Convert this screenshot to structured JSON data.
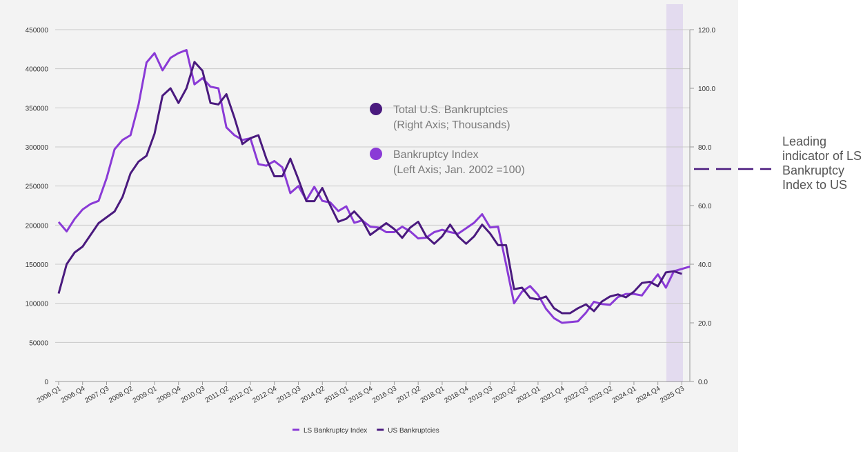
{
  "chart_data": {
    "type": "line",
    "categories": [
      "2006.Q1",
      null,
      null,
      "2006.Q4",
      null,
      null,
      "2007.Q3",
      null,
      null,
      "2008.Q2",
      null,
      null,
      "2009.Q1",
      null,
      null,
      "2009.Q4",
      null,
      null,
      "2010.Q3",
      null,
      null,
      "2011.Q2",
      null,
      null,
      "2012.Q1",
      null,
      null,
      "2012.Q4",
      null,
      null,
      "2013.Q3",
      null,
      null,
      "2014.Q2",
      null,
      null,
      "2015.Q1",
      null,
      null,
      "2015.Q4",
      null,
      null,
      "2016.Q3",
      null,
      null,
      "2017.Q2",
      null,
      null,
      "2018.Q1",
      null,
      null,
      "2018.Q4",
      null,
      null,
      "2019.Q3",
      null,
      null,
      "2020.Q2",
      null,
      null,
      "2021.Q1",
      null,
      null,
      "2021.Q4",
      null,
      null,
      "2022.Q3",
      null,
      null,
      "2023.Q2",
      null,
      null,
      "2024.Q1",
      null,
      null,
      "2024.Q4",
      null,
      null,
      "2025 Q3",
      null
    ],
    "series": [
      {
        "name": "LS Bankruptcy Index",
        "color": "#8a3ad6",
        "axis": "y",
        "values": [
          204000,
          192000,
          208000,
          220000,
          227000,
          231000,
          260000,
          297000,
          309000,
          315000,
          354000,
          408000,
          420000,
          398000,
          414000,
          420000,
          424000,
          380000,
          388000,
          377000,
          375000,
          325000,
          315000,
          309000,
          311000,
          278000,
          276000,
          282000,
          274000,
          241000,
          250000,
          232000,
          249000,
          231000,
          229000,
          218000,
          224000,
          203000,
          206000,
          198000,
          197000,
          191000,
          191000,
          198000,
          192000,
          183000,
          184000,
          191000,
          194000,
          191000,
          189000,
          196000,
          203000,
          214000,
          197000,
          198000,
          150000,
          100000,
          115000,
          122000,
          111000,
          93000,
          81000,
          75000,
          76000,
          77000,
          88000,
          102000,
          99000,
          98000,
          108000,
          112000,
          112000,
          110000,
          124000,
          137000,
          120000,
          141000,
          144000,
          147000
        ]
      },
      {
        "name": "US Bankruptcies",
        "color": "#4a1a7e",
        "axis": "y2",
        "values": [
          30,
          40,
          44,
          46,
          50,
          54,
          56,
          58,
          63,
          71,
          75,
          77,
          84.5,
          97.5,
          100,
          95,
          100,
          109,
          106,
          95,
          94.5,
          98,
          90,
          81,
          83,
          84,
          76,
          70,
          70,
          76,
          69,
          61.5,
          61.5,
          66,
          60,
          54.5,
          55.5,
          58,
          55,
          50,
          52,
          54,
          52,
          49,
          52.5,
          54.5,
          49.5,
          47,
          49.5,
          53.5,
          49.5,
          47,
          49.5,
          53.5,
          50.5,
          46.5,
          46.5,
          31.5,
          32,
          28.5,
          28,
          29,
          25,
          23.3,
          23.3,
          25,
          26.3,
          24,
          27.3,
          29,
          29.7,
          28.7,
          30.6,
          33.6,
          34,
          32.5,
          37.2,
          37.6,
          36.7,
          null
        ]
      }
    ],
    "ylim": [
      0,
      450000
    ],
    "yticks": [
      0,
      50000,
      100000,
      150000,
      200000,
      250000,
      300000,
      350000,
      400000,
      450000
    ],
    "y2lim": [
      0,
      120
    ],
    "y2ticks": [
      {
        "value": 0,
        "label": "0.0"
      },
      {
        "value": 20,
        "label": "20.0"
      },
      {
        "value": 40,
        "label": "40.0"
      },
      {
        "value": 60,
        "label": "60.0"
      },
      {
        "value": 80,
        "label": "80.0"
      },
      {
        "value": 100,
        "label": "100.0"
      },
      {
        "value": 120,
        "label": "120.0"
      }
    ],
    "grid": true,
    "legend": "bottom",
    "annotations": [
      {
        "title": "Total U.S. Bankruptcies",
        "subtitle": "(Right Axis; Thousands)",
        "color": "#4a1a7e"
      },
      {
        "title": "Bankruptcy Index",
        "subtitle": "(Left Axis; Jan. 2002 =100)",
        "color": "#8a3ad6"
      }
    ],
    "side_note": "Leading indicator of LS Bankruptcy Index to US"
  }
}
